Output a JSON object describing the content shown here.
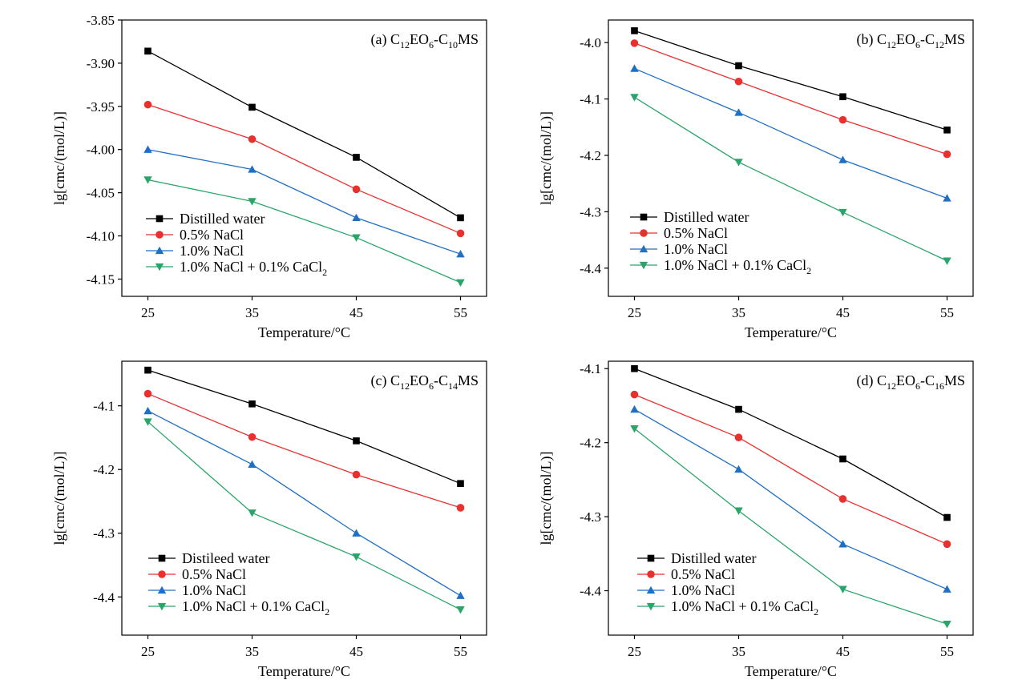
{
  "colors": {
    "distilled": "#000000",
    "nacl05": "#e8312f",
    "nacl10": "#1f6fc5",
    "mixed": "#2aa56a"
  },
  "chart_data": [
    {
      "type": "line",
      "label": {
        "prefix": "(a) C",
        "s1": "12",
        "m1": "EO",
        "s2": "6",
        "m2": "-C",
        "s3": "10",
        "suffix": "MS"
      },
      "xlabel": "Temperature/°C",
      "ylabel": "lg[cmc/(mol/L)]",
      "x": [
        25,
        35,
        45,
        55
      ],
      "ylim": [
        -4.17,
        -3.85
      ],
      "yticks": [
        -3.85,
        -3.9,
        -3.95,
        -4.0,
        -4.05,
        -4.1,
        -4.15
      ],
      "ytick_labels": [
        "-3.85",
        "-3.90",
        "-3.95",
        "-4.00",
        "-4.05",
        "-4.10",
        "-4.15"
      ],
      "legend_pos": "bottom-left",
      "legend": [
        {
          "text": "Distilled water"
        },
        {
          "text": "0.5% NaCl"
        },
        {
          "text": "1.0% NaCl"
        },
        {
          "text": "1.0% NaCl + 0.1% CaCl",
          "sub": "2"
        }
      ],
      "series": [
        {
          "marker": "square",
          "color": "#000000",
          "values": [
            -3.886,
            -3.951,
            -4.009,
            -4.079
          ]
        },
        {
          "marker": "circle",
          "color": "#e8312f",
          "values": [
            -3.948,
            -3.988,
            -4.046,
            -4.097
          ]
        },
        {
          "marker": "triangle-up",
          "color": "#1f6fc5",
          "values": [
            -4.0,
            -4.023,
            -4.079,
            -4.121
          ]
        },
        {
          "marker": "triangle-down",
          "color": "#2aa56a",
          "values": [
            -4.035,
            -4.06,
            -4.102,
            -4.154
          ]
        }
      ]
    },
    {
      "type": "line",
      "label": {
        "prefix": "(b) C",
        "s1": "12",
        "m1": "EO",
        "s2": "6",
        "m2": "-C",
        "s3": "12",
        "suffix": "MS"
      },
      "xlabel": "Temperature/°C",
      "ylabel": "lg[cmc/(mol/L)]",
      "x": [
        25,
        35,
        45,
        55
      ],
      "ylim": [
        -4.45,
        -3.96
      ],
      "yticks": [
        -4.0,
        -4.1,
        -4.2,
        -4.3,
        -4.4
      ],
      "ytick_labels": [
        "-4.0",
        "-4.1",
        "-4.2",
        "-4.3",
        "-4.4"
      ],
      "legend_pos": "bottom-left",
      "legend": [
        {
          "text": "Distilled water"
        },
        {
          "text": "0.5% NaCl"
        },
        {
          "text": "1.0% NaCl"
        },
        {
          "text": "1.0% NaCl + 0.1% CaCl",
          "sub": "2"
        }
      ],
      "series": [
        {
          "marker": "square",
          "color": "#000000",
          "values": [
            -3.979,
            -4.041,
            -4.096,
            -4.155
          ]
        },
        {
          "marker": "circle",
          "color": "#e8312f",
          "values": [
            -4.001,
            -4.069,
            -4.137,
            -4.198
          ]
        },
        {
          "marker": "triangle-up",
          "color": "#1f6fc5",
          "values": [
            -4.046,
            -4.124,
            -4.208,
            -4.276
          ]
        },
        {
          "marker": "triangle-down",
          "color": "#2aa56a",
          "values": [
            -4.097,
            -4.212,
            -4.301,
            -4.387
          ]
        }
      ]
    },
    {
      "type": "line",
      "label": {
        "prefix": "(c) C",
        "s1": "12",
        "m1": "EO",
        "s2": "6",
        "m2": "-C",
        "s3": "14",
        "suffix": "MS"
      },
      "xlabel": "Temperature/°C",
      "ylabel": "lg[cmc/(mol/L)]",
      "x": [
        25,
        35,
        45,
        55
      ],
      "ylim": [
        -4.46,
        -4.03
      ],
      "yticks": [
        -4.1,
        -4.2,
        -4.3,
        -4.4
      ],
      "ytick_labels": [
        "-4.1",
        "-4.2",
        "-4.3",
        "-4.4"
      ],
      "legend_pos": "bottom-left",
      "legend": [
        {
          "text": "Distileed water"
        },
        {
          "text": "0.5% NaCl"
        },
        {
          "text": "1.0% NaCl"
        },
        {
          "text": "1.0% NaCl + 0.1% CaCl",
          "sub": "2"
        }
      ],
      "series": [
        {
          "marker": "square",
          "color": "#000000",
          "values": [
            -4.044,
            -4.097,
            -4.155,
            -4.222
          ]
        },
        {
          "marker": "circle",
          "color": "#e8312f",
          "values": [
            -4.081,
            -4.149,
            -4.208,
            -4.26
          ]
        },
        {
          "marker": "triangle-up",
          "color": "#1f6fc5",
          "values": [
            -4.108,
            -4.192,
            -4.3,
            -4.398
          ]
        },
        {
          "marker": "triangle-down",
          "color": "#2aa56a",
          "values": [
            -4.125,
            -4.268,
            -4.337,
            -4.42
          ]
        }
      ]
    },
    {
      "type": "line",
      "label": {
        "prefix": "(d) C",
        "s1": "12",
        "m1": "EO",
        "s2": "6",
        "m2": "-C",
        "s3": "16",
        "suffix": "MS"
      },
      "xlabel": "Temperature/°C",
      "ylabel": "lg[cmc/(mol/L)]",
      "x": [
        25,
        35,
        45,
        55
      ],
      "ylim": [
        -4.46,
        -4.09
      ],
      "yticks": [
        -4.1,
        -4.2,
        -4.3,
        -4.4
      ],
      "ytick_labels": [
        "-4.1",
        "-4.2",
        "-4.3",
        "-4.4"
      ],
      "legend_pos": "bottom-left",
      "legend": [
        {
          "text": "Distilled water"
        },
        {
          "text": "0.5% NaCl"
        },
        {
          "text": "1.0% NaCl"
        },
        {
          "text": "1.0% NaCl + 0.1% CaCl",
          "sub": "2"
        }
      ],
      "series": [
        {
          "marker": "square",
          "color": "#000000",
          "values": [
            -4.1,
            -4.155,
            -4.222,
            -4.301
          ]
        },
        {
          "marker": "circle",
          "color": "#e8312f",
          "values": [
            -4.135,
            -4.193,
            -4.276,
            -4.337
          ]
        },
        {
          "marker": "triangle-up",
          "color": "#1f6fc5",
          "values": [
            -4.155,
            -4.236,
            -4.337,
            -4.398
          ]
        },
        {
          "marker": "triangle-down",
          "color": "#2aa56a",
          "values": [
            -4.181,
            -4.292,
            -4.398,
            -4.445
          ]
        }
      ]
    }
  ]
}
